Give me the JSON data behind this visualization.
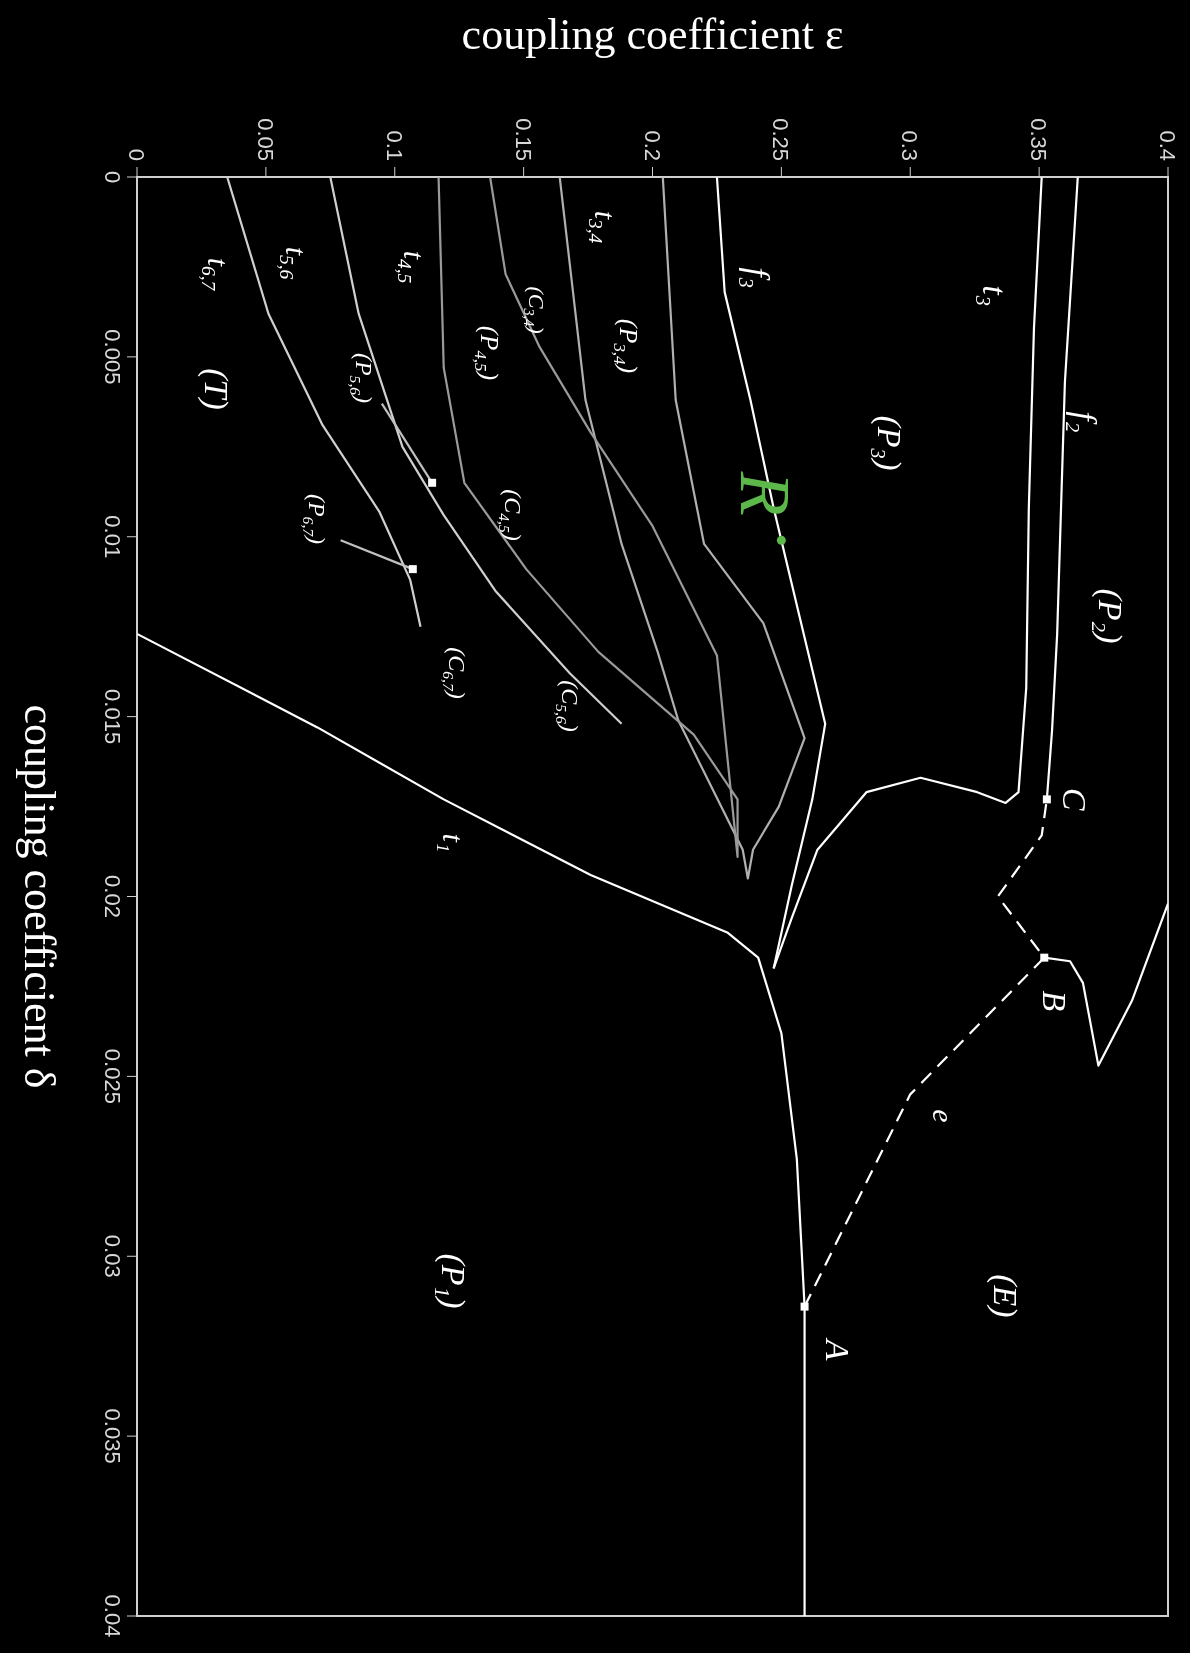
{
  "chart_data": {
    "type": "line",
    "xlabel": "coupling coefficient ε",
    "ylabel": "coupling coefficient δ",
    "xlim": [
      0,
      0.4
    ],
    "ylim": [
      0.04,
      0
    ],
    "xticks": [
      0,
      0.05,
      0.1,
      0.15,
      0.2,
      0.25,
      0.3,
      0.35,
      0.4
    ],
    "yticks": [
      0,
      0.005,
      0.01,
      0.015,
      0.02,
      0.025,
      0.03,
      0.035,
      0.04
    ],
    "series": [
      {
        "color": "#ffffff",
        "x": [
          0,
          0.07,
          0.119,
          0.176,
          0.229,
          0.241,
          0.25,
          0.256,
          0.259,
          0.259
        ],
        "values": [
          0.0127,
          0.0153,
          0.0173,
          0.0194,
          0.021,
          0.0217,
          0.0238,
          0.0273,
          0.0314,
          0.04
        ]
      },
      {
        "color": "#ffffff",
        "line_style": "dashed",
        "x": [
          0.259,
          0.3,
          0.352,
          0.334,
          0.351,
          0.353
        ],
        "values": [
          0.0314,
          0.0255,
          0.0217,
          0.02,
          0.0183,
          0.0173
        ]
      },
      {
        "color": "#ffffff",
        "x": [
          0.352,
          0.362,
          0.367,
          0.373,
          0.386,
          0.4
        ],
        "values": [
          0.0217,
          0.0218,
          0.0224,
          0.0247,
          0.0229,
          0.0202
        ]
      },
      {
        "color": "#ffffff",
        "x": [
          0.365,
          0.36,
          0.357,
          0.355,
          0.353
        ],
        "values": [
          0,
          0.0057,
          0.0127,
          0.0154,
          0.0173
        ]
      },
      {
        "color": "#ffffff",
        "x": [
          0.351,
          0.348,
          0.346,
          0.345,
          0.342,
          0.337,
          0.326,
          0.304,
          0.283,
          0.264,
          0.254,
          0.247
        ],
        "values": [
          0,
          0.0042,
          0.0092,
          0.0142,
          0.0171,
          0.0174,
          0.0171,
          0.0167,
          0.0171,
          0.0187,
          0.0206,
          0.022
        ]
      },
      {
        "color": "#ffffff",
        "x": [
          0.225,
          0.228,
          0.238,
          0.247,
          0.257,
          0.267,
          0.262,
          0.254,
          0.247
        ],
        "values": [
          0,
          0.0032,
          0.0062,
          0.0092,
          0.0122,
          0.0152,
          0.0173,
          0.0197,
          0.022
        ]
      },
      {
        "color": "#b0b0b0",
        "x": [
          0.164,
          0.174,
          0.188,
          0.202,
          0.21,
          0.235,
          0.237,
          0.239,
          0.249,
          0.259,
          0.243,
          0.22,
          0.209,
          0.204
        ],
        "values": [
          0,
          0.0062,
          0.0102,
          0.0132,
          0.0151,
          0.0187,
          0.0195,
          0.0187,
          0.0175,
          0.0156,
          0.0124,
          0.0102,
          0.0062,
          0
        ]
      },
      {
        "color": "#9a9a9a",
        "x": [
          0.117,
          0.119,
          0.127,
          0.151,
          0.179,
          0.216,
          0.233,
          0.233,
          0.225,
          0.2,
          0.176,
          0.156,
          0.143,
          0.137
        ],
        "values": [
          0,
          0.0053,
          0.0085,
          0.0109,
          0.0132,
          0.0155,
          0.0173,
          0.0189,
          0.0133,
          0.0097,
          0.0071,
          0.0047,
          0.0027,
          0
        ]
      },
      {
        "color": "#d0d0d0",
        "x": [
          0.075,
          0.086,
          0.103,
          0.119,
          0.139,
          0.168,
          0.188
        ],
        "values": [
          0,
          0.0038,
          0.0075,
          0.0094,
          0.0115,
          0.0138,
          0.0152
        ]
      },
      {
        "color": "#d0d0d0",
        "x": [
          0.035,
          0.051,
          0.072,
          0.094,
          0.106,
          0.11
        ],
        "values": [
          0,
          0.0038,
          0.0069,
          0.0093,
          0.0112,
          0.0125
        ]
      },
      {
        "color": "#c0c0c0",
        "x": [
          0.095,
          0.1145
        ],
        "values": [
          0.0063,
          0.0085
        ]
      },
      {
        "color": "#c0c0c0",
        "x": [
          0.079,
          0.107
        ],
        "values": [
          0.0101,
          0.0109
        ]
      },
      {
        "type": "scatter",
        "color": "#ffffff",
        "marker": "square",
        "x": [
          0.259,
          0.352,
          0.353,
          0.1145,
          0.107
        ],
        "values": [
          0.0314,
          0.0217,
          0.0173,
          0.0085,
          0.0109
        ]
      },
      {
        "type": "scatter",
        "name": "R",
        "color": "#5cb84a",
        "marker": "circle",
        "x": [
          0.25
        ],
        "values": [
          0.0101
        ]
      }
    ],
    "grid": false,
    "annotations": [
      "f₂",
      "(P₂)",
      "t₃",
      "(P₃)",
      "f₃",
      "t$_{3,4}$",
      "(P$_{3,4}$)",
      "(C$_{3,4}$)",
      "(P$_{4,5}$)",
      "t$_{4,5}$",
      "t$_{5,6}$",
      "t$_{6,7}$",
      "(T)",
      "(P$_{5,6}$)",
      "(P$_{6,7}$)",
      "(C$_{4,5}$)",
      "(C$_{5,6}$)",
      "(C$_{6,7}$)",
      "t₁",
      "C",
      "B",
      "e",
      "A",
      "(E)",
      "(P₁)"
    ]
  }
}
